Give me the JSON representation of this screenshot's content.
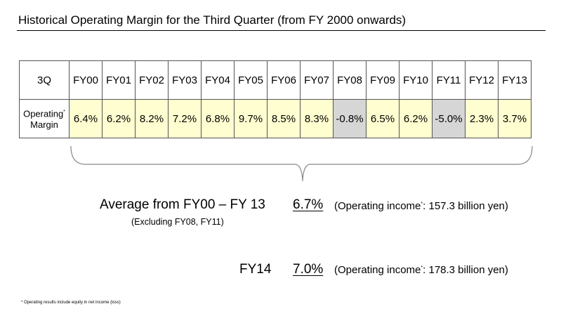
{
  "title": "Historical Operating Margin for the Third Quarter  (from FY 2000 onwards)",
  "table": {
    "header_label": "3Q",
    "row_label_line1": "Operating",
    "row_label_line2": "Margin",
    "row_label_mark": "*",
    "years": [
      "FY00",
      "FY01",
      "FY02",
      "FY03",
      "FY04",
      "FY05",
      "FY06",
      "FY07",
      "FY08",
      "FY09",
      "FY10",
      "FY11",
      "FY12",
      "FY13"
    ],
    "margins": [
      "6.4%",
      "6.2%",
      "8.2%",
      "7.2%",
      "6.8%",
      "9.7%",
      "8.5%",
      "8.3%",
      "-0.8%",
      "6.5%",
      "6.2%",
      "-5.0%",
      "2.3%",
      "3.7%"
    ],
    "excluded_years": [
      "FY08",
      "FY11"
    ],
    "colors": {
      "value_fill": "#fffed0",
      "excluded_fill": "#d6d6d6"
    }
  },
  "average": {
    "label": "Average from FY00 – FY 13",
    "note": "(Excluding FY08, FY11)",
    "value": "6.7%",
    "income_prefix": "(Operating income",
    "income_mark": "*",
    "income_suffix": ": 157.3 billion yen)"
  },
  "fy14": {
    "label": "FY14",
    "value": "7.0%",
    "income_prefix": "(Operating income",
    "income_mark": "*",
    "income_suffix": ": 178.3 billion yen)"
  },
  "footnote": "* Operating results include equity in net income (loss)"
}
